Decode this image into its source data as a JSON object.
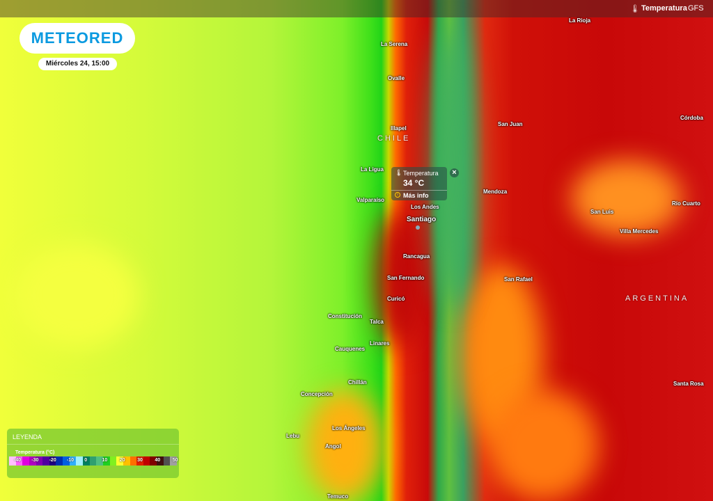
{
  "header": {
    "layer_label": "Temperatura",
    "model_label": "GFS"
  },
  "logo": "METEORED",
  "date_label": "Miércoles 24, 15:00",
  "countries": [
    "CHILE",
    "ARGENTINA"
  ],
  "cities": [
    "La Rioja",
    "La Serena",
    "Ovalle",
    "Illapel",
    "San Juan",
    "Córdoba",
    "La Ligua",
    "Mendoza",
    "Valparaíso",
    "Los Andes",
    "Santiago",
    "San Luis",
    "Río Cuarto",
    "Villa Mercedes",
    "Rancagua",
    "San Fernando",
    "San Rafael",
    "Curicó",
    "Constitución",
    "Talca",
    "Linares",
    "Cauquenes",
    "Chillán",
    "Concepción",
    "Santa Rosa",
    "Los Ángeles",
    "Lebu",
    "Angol",
    "Temuco"
  ],
  "popup": {
    "title": "Temperatura",
    "value": "34 °C",
    "more_info": "Más info",
    "close": "×",
    "icon": "thermometer-icon"
  },
  "legend": {
    "title": "LEYENDA",
    "subtitle": "Temperatura (°C)",
    "ticks": [
      "-40",
      "-30",
      "-20",
      "-10",
      "0",
      "10",
      "20",
      "30",
      "40",
      "50"
    ],
    "colors": [
      "#ffc0ff",
      "#ff60ff",
      "#e000e0",
      "#b000c0",
      "#8000b0",
      "#5000a0",
      "#200080",
      "#0030b0",
      "#0060e0",
      "#30b0ff",
      "#a0f0ff",
      "#008060",
      "#30a070",
      "#50c080",
      "#20d020",
      "#80f020",
      "#ffff30",
      "#ffc000",
      "#ff7000",
      "#e02000",
      "#c00000",
      "#800000",
      "#401010",
      "#505050",
      "#a0a0a0"
    ]
  }
}
